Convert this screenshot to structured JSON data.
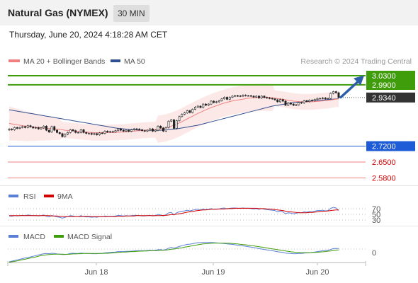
{
  "header": {
    "title": "Natural Gas (NYMEX)",
    "timeframe": "30 MIN",
    "datetime": "Thursday, June 20, 2024 4:18:28 AM CET"
  },
  "legend": {
    "ma20_label": "MA 20 + Bollinger Bands",
    "ma50_label": "MA 50",
    "credit": "Research © 2024 Trading Central",
    "colors": {
      "ma20": "#f08080",
      "bollinger_fill": "#fde4e4",
      "ma50": "#2f4f8f"
    }
  },
  "chart_data": [
    {
      "type": "line",
      "panel": "price",
      "y_range": [
        2.5,
        3.05
      ],
      "x_ticks": [
        "Jun 18",
        "Jun 19",
        "Jun 20"
      ],
      "levels": [
        {
          "label": "3.0300",
          "value": 3.03,
          "color": "#3f9c0b",
          "kind": "resistance"
        },
        {
          "label": "2.9900",
          "value": 2.99,
          "color": "#3f9c0b",
          "kind": "resistance"
        },
        {
          "label": "2.9340",
          "value": 2.934,
          "color": "#333333",
          "kind": "last_price"
        },
        {
          "label": "2.7200",
          "value": 2.72,
          "color": "#1e5bd6",
          "kind": "pivot"
        },
        {
          "label": "2.6500",
          "value": 2.65,
          "color": "#f08080",
          "kind": "support"
        },
        {
          "label": "2.5800",
          "value": 2.58,
          "color": "#f08080",
          "kind": "support"
        }
      ],
      "close": [
        2.795,
        2.792,
        2.802,
        2.798,
        2.802,
        2.806,
        2.802,
        2.81,
        2.805,
        2.8,
        2.802,
        2.796,
        2.8,
        2.808,
        2.79,
        2.782,
        2.806,
        2.79,
        2.78,
        2.775,
        2.762,
        2.772,
        2.78,
        2.792,
        2.788,
        2.78,
        2.78,
        2.792,
        2.78,
        2.776,
        2.776,
        2.772,
        2.775,
        2.77,
        2.778,
        2.776,
        2.786,
        2.782,
        2.784,
        2.782,
        2.788,
        2.796,
        2.79,
        2.786,
        2.79,
        2.785,
        2.792,
        2.796,
        2.795,
        2.792,
        2.788,
        2.786,
        2.79,
        2.796,
        2.786,
        2.79,
        2.808,
        2.8,
        2.786,
        2.802,
        2.83,
        2.836,
        2.798,
        2.832,
        2.85,
        2.86,
        2.866,
        2.876,
        2.868,
        2.882,
        2.892,
        2.896,
        2.89,
        2.905,
        2.9,
        2.905,
        2.918,
        2.912,
        2.915,
        2.92,
        2.928,
        2.935,
        2.926,
        2.935,
        2.94,
        2.942,
        2.941,
        2.94,
        2.944,
        2.942,
        2.942,
        2.94,
        2.936,
        2.94,
        2.932,
        2.94,
        2.934,
        2.932,
        2.93,
        2.928,
        2.924,
        2.915,
        2.925,
        2.918,
        2.9,
        2.91,
        2.905,
        2.9,
        2.902,
        2.912,
        2.91,
        2.92,
        2.916,
        2.922,
        2.92,
        2.925,
        2.93,
        2.93,
        2.932,
        2.928,
        2.93,
        2.952,
        2.96,
        2.955,
        2.934
      ],
      "ma20": [
        2.82,
        2.818,
        2.816,
        2.814,
        2.812,
        2.81,
        2.808,
        2.806,
        2.805,
        2.804,
        2.803,
        2.802,
        2.801,
        2.8,
        2.799,
        2.798,
        2.797,
        2.796,
        2.795,
        2.794,
        2.792,
        2.79,
        2.789,
        2.788,
        2.787,
        2.786,
        2.785,
        2.784,
        2.783,
        2.782,
        2.781,
        2.78,
        2.779,
        2.779,
        2.779,
        2.779,
        2.779,
        2.78,
        2.78,
        2.78,
        2.781,
        2.781,
        2.782,
        2.782,
        2.783,
        2.784,
        2.785,
        2.786,
        2.787,
        2.788,
        2.789,
        2.79,
        2.79,
        2.791,
        2.792,
        2.792,
        2.794,
        2.796,
        2.798,
        2.8,
        2.804,
        2.808,
        2.812,
        2.817,
        2.822,
        2.828,
        2.834,
        2.84,
        2.846,
        2.852,
        2.858,
        2.864,
        2.869,
        2.875,
        2.88,
        2.885,
        2.89,
        2.894,
        2.898,
        2.902,
        2.906,
        2.91,
        2.913,
        2.916,
        2.919,
        2.921,
        2.923,
        2.925,
        2.927,
        2.929,
        2.931,
        2.932,
        2.933,
        2.934,
        2.934,
        2.935,
        2.935,
        2.935,
        2.934,
        2.933,
        2.931,
        2.929,
        2.928,
        2.926,
        2.924,
        2.922,
        2.92,
        2.918,
        2.917,
        2.916,
        2.915,
        2.915,
        2.915,
        2.915,
        2.915,
        2.916,
        2.917,
        2.918,
        2.919,
        2.92,
        2.921,
        2.923,
        2.925,
        2.927,
        2.928
      ],
      "ma50": [
        2.88,
        2.878,
        2.876,
        2.874,
        2.872,
        2.87,
        2.868,
        2.866,
        2.864,
        2.862,
        2.86,
        2.858,
        2.856,
        2.854,
        2.852,
        2.85,
        2.848,
        2.846,
        2.844,
        2.842,
        2.84,
        2.838,
        2.836,
        2.834,
        2.832,
        2.83,
        2.828,
        2.826,
        2.824,
        2.822,
        2.82,
        2.818,
        2.816,
        2.814,
        2.812,
        2.81,
        2.808,
        2.806,
        2.804,
        2.802,
        2.8,
        2.798,
        2.797,
        2.796,
        2.795,
        2.794,
        2.793,
        2.792,
        2.791,
        2.79,
        2.79,
        2.79,
        2.79,
        2.79,
        2.79,
        2.79,
        2.79,
        2.79,
        2.791,
        2.792,
        2.793,
        2.794,
        2.795,
        2.796,
        2.798,
        2.8,
        2.802,
        2.804,
        2.806,
        2.808,
        2.81,
        2.812,
        2.815,
        2.818,
        2.821,
        2.824,
        2.827,
        2.83,
        2.833,
        2.836,
        2.839,
        2.842,
        2.845,
        2.848,
        2.851,
        2.854,
        2.857,
        2.86,
        2.863,
        2.866,
        2.869,
        2.872,
        2.875,
        2.878,
        2.881,
        2.884,
        2.887,
        2.89,
        2.893,
        2.896,
        2.898,
        2.9,
        2.902,
        2.904,
        2.906,
        2.908,
        2.91,
        2.912,
        2.913,
        2.914,
        2.915,
        2.916,
        2.917,
        2.918,
        2.919,
        2.92,
        2.921,
        2.922,
        2.923,
        2.924,
        2.925,
        2.926,
        2.927,
        2.928,
        2.93
      ]
    },
    {
      "type": "line",
      "panel": "rsi",
      "y_range": [
        20,
        80
      ],
      "y_ticks": [
        "70",
        "50",
        "30"
      ],
      "series": [
        {
          "name": "RSI",
          "color": "#5b7fd6",
          "values": [
            45,
            44,
            46,
            45,
            46,
            47,
            46,
            48,
            47,
            46,
            46,
            45,
            46,
            48,
            44,
            42,
            47,
            44,
            42,
            41,
            38,
            41,
            43,
            46,
            45,
            43,
            43,
            46,
            43,
            42,
            42,
            41,
            42,
            41,
            43,
            42,
            45,
            44,
            44,
            44,
            45,
            47,
            46,
            45,
            46,
            45,
            46,
            47,
            47,
            46,
            45,
            45,
            46,
            47,
            45,
            46,
            50,
            48,
            45,
            49,
            55,
            56,
            48,
            55,
            58,
            60,
            61,
            63,
            61,
            63,
            65,
            66,
            64,
            67,
            65,
            66,
            68,
            66,
            67,
            67,
            69,
            70,
            67,
            69,
            70,
            70,
            69,
            69,
            70,
            69,
            69,
            68,
            67,
            68,
            66,
            68,
            66,
            65,
            64,
            63,
            62,
            58,
            61,
            58,
            52,
            55,
            54,
            52,
            53,
            56,
            55,
            58,
            57,
            59,
            58,
            60,
            62,
            62,
            63,
            61,
            62,
            69,
            72,
            70,
            62
          ]
        },
        {
          "name": "9MA",
          "color": "#d40000",
          "values": [
            46,
            46,
            46,
            46,
            46,
            46,
            46,
            46,
            46,
            46,
            46,
            46,
            46,
            46,
            46,
            46,
            45,
            45,
            45,
            44,
            44,
            43,
            43,
            43,
            43,
            43,
            43,
            43,
            44,
            44,
            44,
            43,
            43,
            43,
            43,
            43,
            43,
            43,
            43,
            43,
            43,
            44,
            44,
            44,
            45,
            45,
            45,
            45,
            46,
            46,
            46,
            46,
            46,
            46,
            46,
            46,
            46,
            46,
            47,
            47,
            48,
            49,
            49,
            51,
            52,
            53,
            55,
            57,
            58,
            59,
            61,
            62,
            63,
            64,
            64,
            65,
            66,
            66,
            66,
            67,
            67,
            67,
            68,
            68,
            68,
            69,
            69,
            69,
            69,
            69,
            69,
            69,
            69,
            69,
            68,
            68,
            68,
            67,
            67,
            66,
            65,
            64,
            63,
            62,
            60,
            59,
            58,
            57,
            56,
            55,
            55,
            55,
            55,
            56,
            56,
            57,
            58,
            59,
            60,
            60,
            61,
            62,
            63,
            64,
            64
          ]
        }
      ]
    },
    {
      "type": "line",
      "panel": "macd",
      "y_ticks": [
        "0"
      ],
      "series": [
        {
          "name": "MACD",
          "color": "#5b7fd6",
          "values": [
            -0.06,
            -0.057,
            -0.054,
            -0.051,
            -0.048,
            -0.045,
            -0.042,
            -0.04,
            -0.037,
            -0.034,
            -0.031,
            -0.028,
            -0.025,
            -0.022,
            -0.021,
            -0.022,
            -0.02,
            -0.021,
            -0.023,
            -0.024,
            -0.026,
            -0.026,
            -0.024,
            -0.021,
            -0.02,
            -0.021,
            -0.021,
            -0.019,
            -0.02,
            -0.021,
            -0.021,
            -0.022,
            -0.022,
            -0.022,
            -0.021,
            -0.02,
            -0.018,
            -0.017,
            -0.016,
            -0.015,
            -0.014,
            -0.012,
            -0.012,
            -0.012,
            -0.011,
            -0.011,
            -0.01,
            -0.009,
            -0.008,
            -0.008,
            -0.008,
            -0.008,
            -0.007,
            -0.006,
            -0.007,
            -0.006,
            -0.003,
            -0.003,
            -0.005,
            -0.002,
            0.004,
            0.008,
            0.004,
            0.008,
            0.012,
            0.016,
            0.019,
            0.022,
            0.023,
            0.025,
            0.028,
            0.03,
            0.03,
            0.031,
            0.031,
            0.031,
            0.031,
            0.03,
            0.029,
            0.028,
            0.027,
            0.026,
            0.024,
            0.023,
            0.022,
            0.02,
            0.018,
            0.016,
            0.015,
            0.013,
            0.011,
            0.009,
            0.007,
            0.005,
            0.002,
            0.0,
            -0.002,
            -0.004,
            -0.006,
            -0.008,
            -0.01,
            -0.013,
            -0.014,
            -0.016,
            -0.019,
            -0.02,
            -0.021,
            -0.022,
            -0.022,
            -0.021,
            -0.021,
            -0.019,
            -0.018,
            -0.017,
            -0.016,
            -0.014,
            -0.012,
            -0.01,
            -0.008,
            -0.007,
            -0.006,
            -0.002,
            0.002,
            0.003,
            0.002
          ]
        },
        {
          "name": "MACD Signal",
          "color": "#3f9c0b",
          "values": [
            -0.062,
            -0.06,
            -0.058,
            -0.056,
            -0.053,
            -0.05,
            -0.048,
            -0.045,
            -0.042,
            -0.04,
            -0.037,
            -0.034,
            -0.031,
            -0.029,
            -0.027,
            -0.026,
            -0.025,
            -0.024,
            -0.024,
            -0.024,
            -0.024,
            -0.025,
            -0.025,
            -0.024,
            -0.023,
            -0.023,
            -0.022,
            -0.022,
            -0.021,
            -0.021,
            -0.021,
            -0.021,
            -0.021,
            -0.021,
            -0.021,
            -0.021,
            -0.02,
            -0.02,
            -0.019,
            -0.018,
            -0.017,
            -0.016,
            -0.015,
            -0.014,
            -0.014,
            -0.013,
            -0.012,
            -0.012,
            -0.011,
            -0.01,
            -0.01,
            -0.009,
            -0.009,
            -0.008,
            -0.008,
            -0.008,
            -0.007,
            -0.006,
            -0.006,
            -0.005,
            -0.003,
            -0.001,
            0.0,
            0.002,
            0.004,
            0.006,
            0.009,
            0.011,
            0.013,
            0.016,
            0.018,
            0.02,
            0.022,
            0.024,
            0.025,
            0.026,
            0.027,
            0.028,
            0.028,
            0.028,
            0.028,
            0.028,
            0.027,
            0.027,
            0.026,
            0.025,
            0.024,
            0.022,
            0.021,
            0.02,
            0.018,
            0.016,
            0.015,
            0.013,
            0.011,
            0.009,
            0.007,
            0.005,
            0.003,
            0.001,
            -0.001,
            -0.003,
            -0.005,
            -0.007,
            -0.009,
            -0.011,
            -0.013,
            -0.014,
            -0.016,
            -0.016,
            -0.017,
            -0.017,
            -0.017,
            -0.017,
            -0.016,
            -0.016,
            -0.015,
            -0.014,
            -0.013,
            -0.012,
            -0.01,
            -0.009,
            -0.007,
            -0.005,
            -0.004
          ]
        }
      ]
    }
  ]
}
